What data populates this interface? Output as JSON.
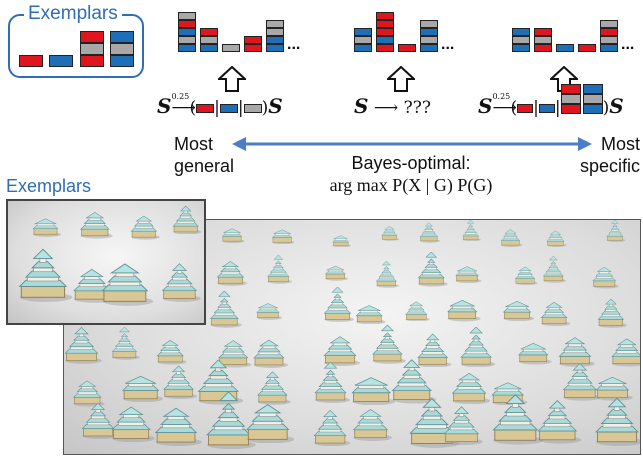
{
  "exemplar_box": {
    "label": "Exemplars"
  },
  "rules": {
    "left": {
      "start": "S",
      "exponent": "0.25",
      "end": "S"
    },
    "middle": {
      "start": "S",
      "arrow": "⟶",
      "result": "???"
    },
    "right": {
      "start": "S",
      "exponent": "0.25",
      "end": "S"
    }
  },
  "ellipsis": "...",
  "spectrum": {
    "left_line1": "Most",
    "left_line2": "general",
    "right_line1": "Most",
    "right_line2": "specific",
    "center_line1": "Bayes-optimal:",
    "center_line2": "arg max P(X | G) P(G)"
  },
  "photo_label": "Exemplars",
  "colors": {
    "red": "#e0161e",
    "blue": "#1f6fb8",
    "gray": "#a8a8a8",
    "accent": "#2f6db5",
    "arrow": "#4a7fc8"
  }
}
